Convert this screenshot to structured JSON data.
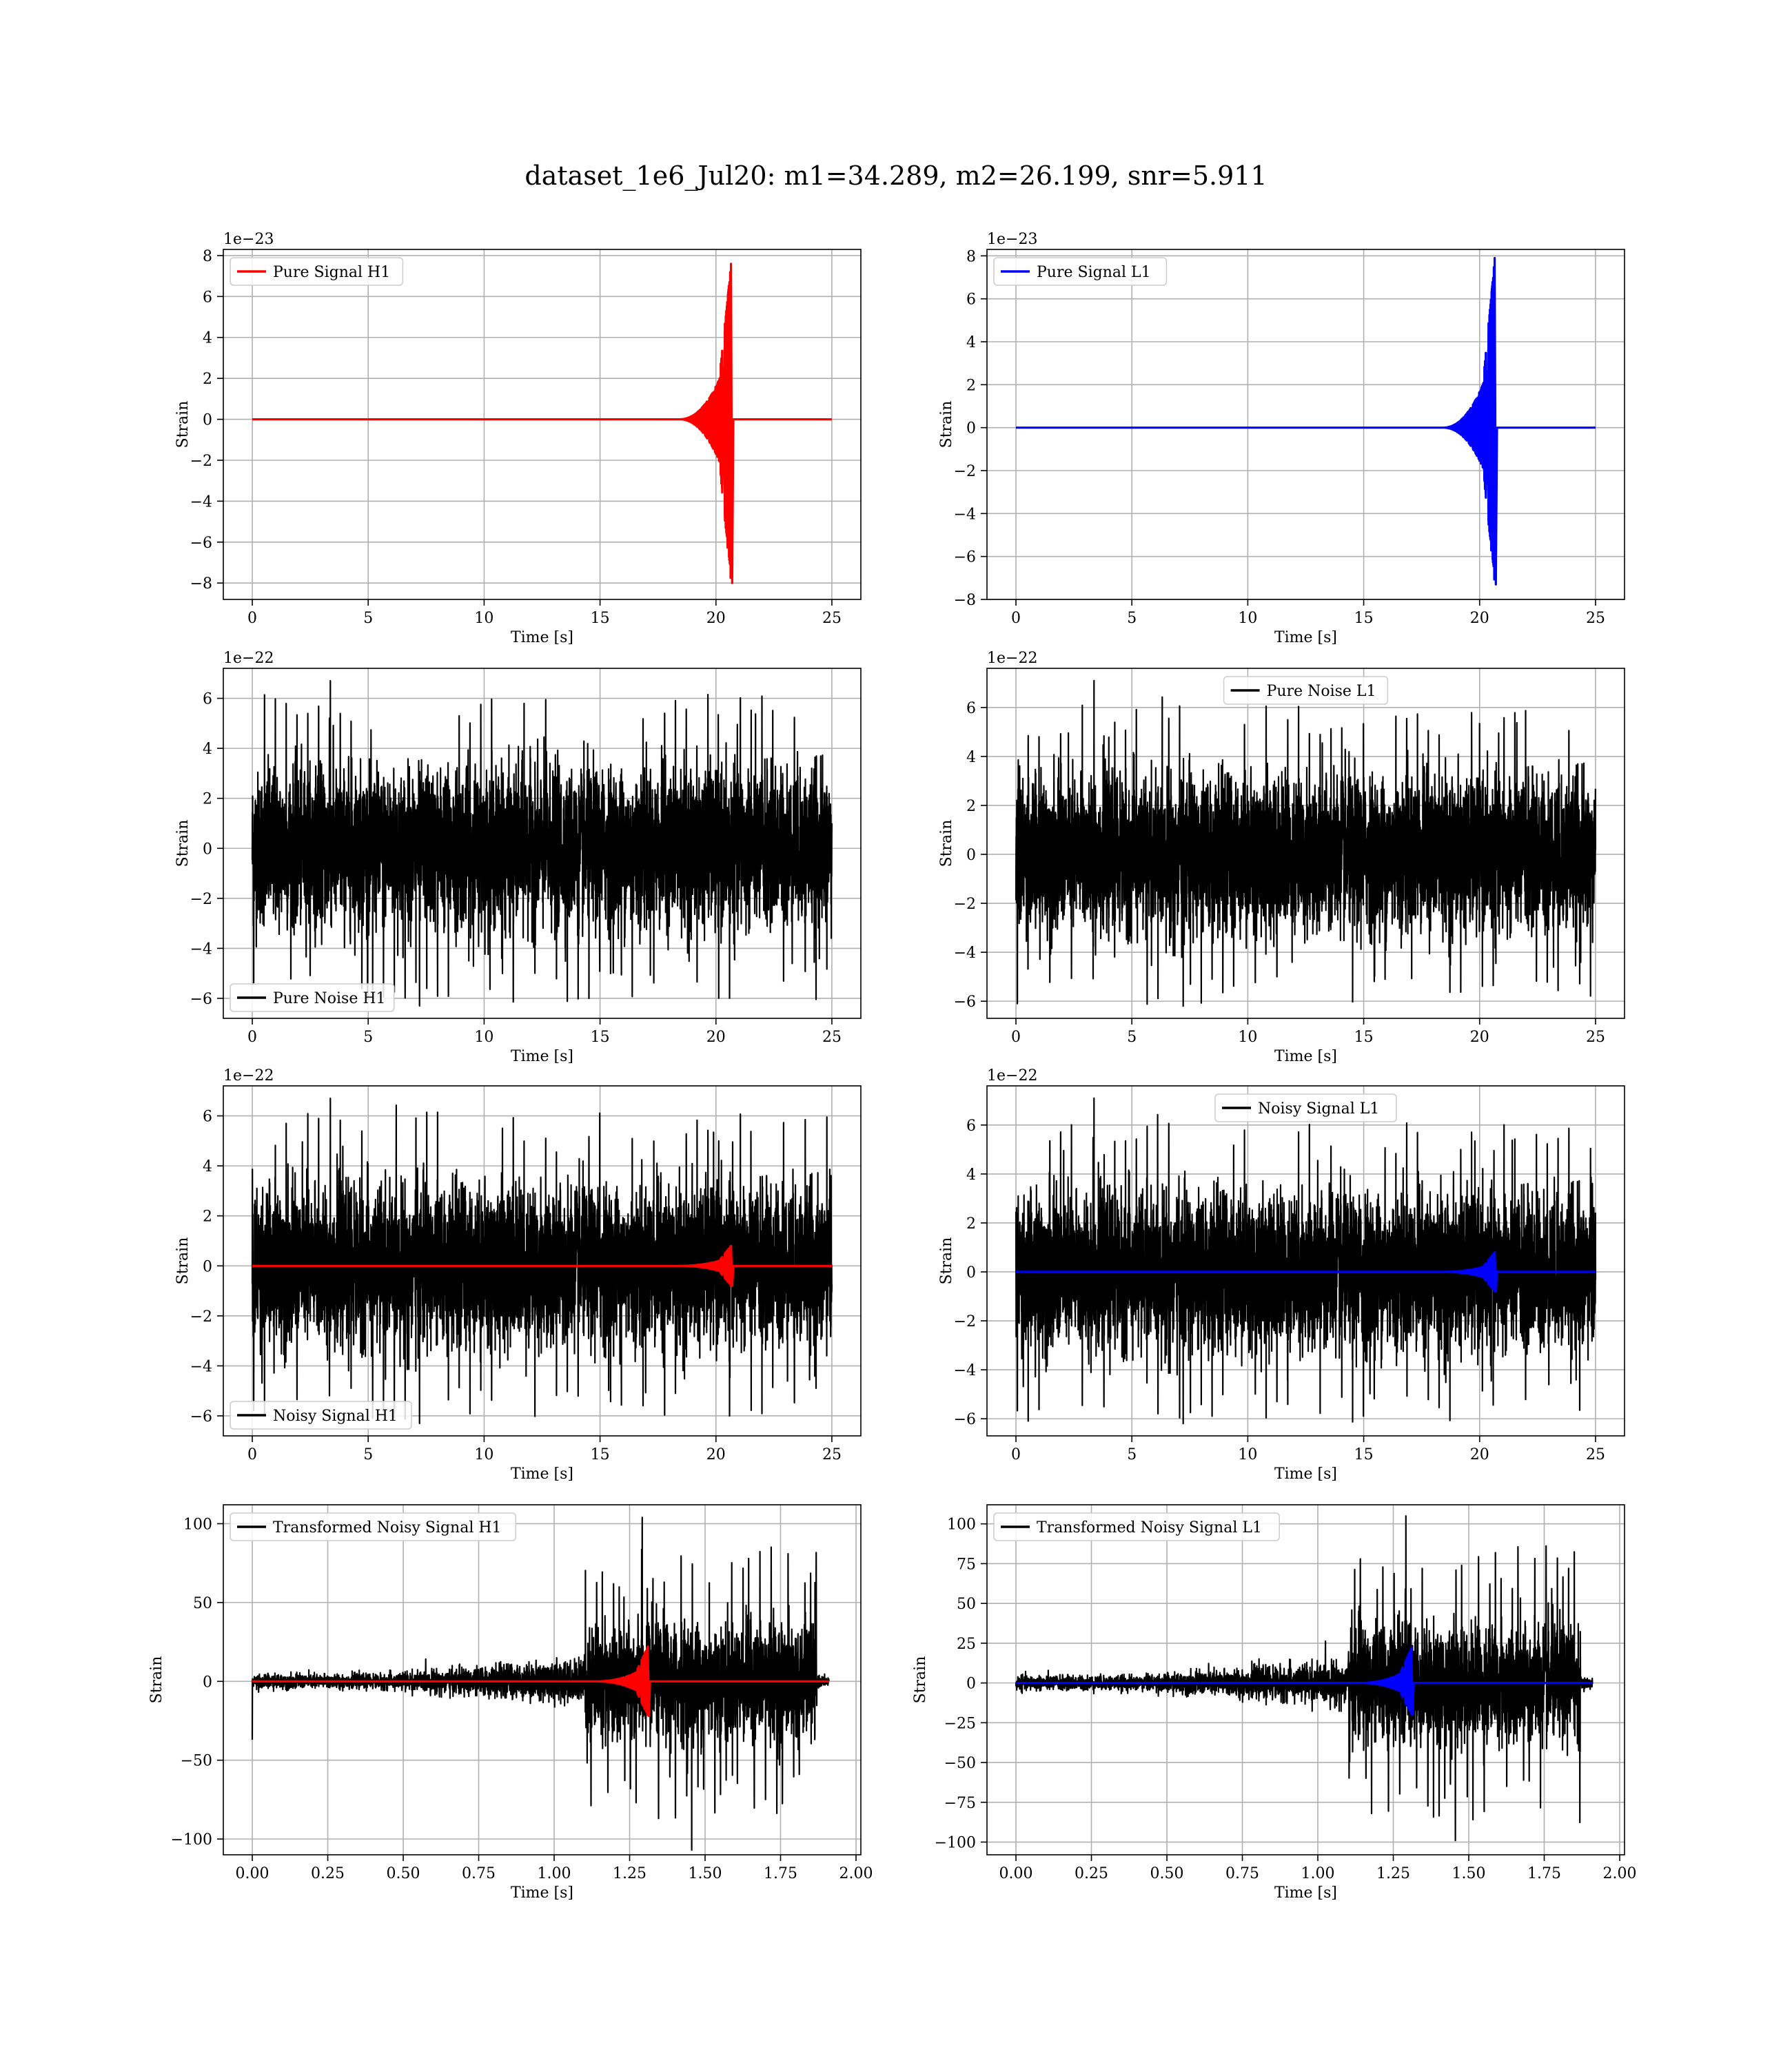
{
  "figure": {
    "title": "dataset_1e6_Jul20: m1=34.289, m2=26.199, snr=5.911"
  },
  "colors": {
    "h1_signal": "#ff0000",
    "l1_signal": "#0000ff",
    "noise": "#000000",
    "grid": "#b0b0b0"
  },
  "chart_data": [
    {
      "type": "line",
      "name": "pure-signal-h1",
      "legend": "Pure Signal H1",
      "legend_loc": "upper-left",
      "xlabel": "Time [s]",
      "ylabel": "Strain",
      "offset_text": "1e−23",
      "xlim": [
        -1.25,
        26.25
      ],
      "ylim": [
        -8.8,
        8.3
      ],
      "xticks": [
        0,
        5,
        10,
        15,
        20,
        25
      ],
      "xtick_labels": [
        "0",
        "5",
        "10",
        "15",
        "20",
        "25"
      ],
      "yticks": [
        -8,
        -6,
        -4,
        -2,
        0,
        2,
        4,
        6,
        8
      ],
      "ytick_labels": [
        "−8",
        "−6",
        "−4",
        "−2",
        "0",
        "2",
        "4",
        "6",
        "8"
      ],
      "grid": true,
      "series": [
        {
          "role": "signal",
          "color": "#ff0000",
          "x_range": [
            0,
            25
          ],
          "chirp_end": 20.65,
          "peak_pos": 7.6,
          "peak_neg": -8.0
        }
      ]
    },
    {
      "type": "line",
      "name": "pure-signal-l1",
      "legend": "Pure Signal L1",
      "legend_loc": "upper-left",
      "xlabel": "Time [s]",
      "ylabel": "Strain",
      "offset_text": "1e−23",
      "xlim": [
        -1.25,
        26.25
      ],
      "ylim": [
        -8.0,
        8.3
      ],
      "xticks": [
        0,
        5,
        10,
        15,
        20,
        25
      ],
      "xtick_labels": [
        "0",
        "5",
        "10",
        "15",
        "20",
        "25"
      ],
      "yticks": [
        -8,
        -6,
        -4,
        -2,
        0,
        2,
        4,
        6,
        8
      ],
      "ytick_labels": [
        "−8",
        "−6",
        "−4",
        "−2",
        "0",
        "2",
        "4",
        "6",
        "8"
      ],
      "grid": true,
      "series": [
        {
          "role": "signal",
          "color": "#0000ff",
          "x_range": [
            0,
            25
          ],
          "chirp_end": 20.65,
          "peak_pos": 7.9,
          "peak_neg": -7.3
        }
      ]
    },
    {
      "type": "line",
      "name": "pure-noise-h1",
      "legend": "Pure Noise H1",
      "legend_loc": "lower-left",
      "xlabel": "Time [s]",
      "ylabel": "Strain",
      "offset_text": "1e−22",
      "xlim": [
        -1.25,
        26.25
      ],
      "ylim": [
        -6.8,
        7.2
      ],
      "xticks": [
        0,
        5,
        10,
        15,
        20,
        25
      ],
      "xtick_labels": [
        "0",
        "5",
        "10",
        "15",
        "20",
        "25"
      ],
      "yticks": [
        -6,
        -4,
        -2,
        0,
        2,
        4,
        6
      ],
      "ytick_labels": [
        "−6",
        "−4",
        "−2",
        "0",
        "2",
        "4",
        "6"
      ],
      "grid": true,
      "series": [
        {
          "role": "noise",
          "color": "#000000",
          "x_range": [
            0,
            25
          ],
          "max": 6.7,
          "min": -6.3,
          "sigma": 1.5
        }
      ]
    },
    {
      "type": "line",
      "name": "pure-noise-l1",
      "legend": "Pure Noise L1",
      "legend_loc": "upper-center",
      "xlabel": "Time [s]",
      "ylabel": "Strain",
      "offset_text": "1e−22",
      "xlim": [
        -1.25,
        26.25
      ],
      "ylim": [
        -6.7,
        7.6
      ],
      "xticks": [
        0,
        5,
        10,
        15,
        20,
        25
      ],
      "xtick_labels": [
        "0",
        "5",
        "10",
        "15",
        "20",
        "25"
      ],
      "yticks": [
        -6,
        -4,
        -2,
        0,
        2,
        4,
        6
      ],
      "ytick_labels": [
        "−6",
        "−4",
        "−2",
        "0",
        "2",
        "4",
        "6"
      ],
      "grid": true,
      "series": [
        {
          "role": "noise",
          "color": "#000000",
          "x_range": [
            0,
            25
          ],
          "max": 7.1,
          "min": -6.2,
          "sigma": 1.5
        }
      ]
    },
    {
      "type": "line",
      "name": "noisy-signal-h1",
      "legend": "Noisy Signal H1",
      "legend_loc": "lower-left",
      "xlabel": "Time [s]",
      "ylabel": "Strain",
      "offset_text": "1e−22",
      "xlim": [
        -1.25,
        26.25
      ],
      "ylim": [
        -6.8,
        7.2
      ],
      "xticks": [
        0,
        5,
        10,
        15,
        20,
        25
      ],
      "xtick_labels": [
        "0",
        "5",
        "10",
        "15",
        "20",
        "25"
      ],
      "yticks": [
        -6,
        -4,
        -2,
        0,
        2,
        4,
        6
      ],
      "ytick_labels": [
        "−6",
        "−4",
        "−2",
        "0",
        "2",
        "4",
        "6"
      ],
      "grid": true,
      "series": [
        {
          "role": "noise",
          "color": "#000000",
          "x_range": [
            0,
            25
          ],
          "max": 6.7,
          "min": -6.3,
          "sigma": 1.5
        },
        {
          "role": "signal",
          "color": "#ff0000",
          "x_range": [
            0,
            25
          ],
          "chirp_end": 20.65,
          "peak_pos": 0.8,
          "peak_neg": -0.8
        }
      ]
    },
    {
      "type": "line",
      "name": "noisy-signal-l1",
      "legend": "Noisy Signal L1",
      "legend_loc": "upper-center",
      "xlabel": "Time [s]",
      "ylabel": "Strain",
      "offset_text": "1e−22",
      "xlim": [
        -1.25,
        26.25
      ],
      "ylim": [
        -6.7,
        7.6
      ],
      "xticks": [
        0,
        5,
        10,
        15,
        20,
        25
      ],
      "xtick_labels": [
        "0",
        "5",
        "10",
        "15",
        "20",
        "25"
      ],
      "yticks": [
        -6,
        -4,
        -2,
        0,
        2,
        4,
        6
      ],
      "ytick_labels": [
        "−6",
        "−4",
        "−2",
        "0",
        "2",
        "4",
        "6"
      ],
      "grid": true,
      "series": [
        {
          "role": "noise",
          "color": "#000000",
          "x_range": [
            0,
            25
          ],
          "max": 7.1,
          "min": -6.2,
          "sigma": 1.5
        },
        {
          "role": "signal",
          "color": "#0000ff",
          "x_range": [
            0,
            25
          ],
          "chirp_end": 20.65,
          "peak_pos": 0.8,
          "peak_neg": -0.8
        }
      ]
    },
    {
      "type": "line",
      "name": "transformed-noisy-signal-h1",
      "legend": "Transformed Noisy Signal H1",
      "legend_loc": "upper-left",
      "xlabel": "Time [s]",
      "ylabel": "Strain",
      "offset_text": "",
      "xlim": [
        -0.096,
        2.016
      ],
      "ylim": [
        -110,
        112
      ],
      "xticks": [
        0,
        0.25,
        0.5,
        0.75,
        1.0,
        1.25,
        1.5,
        1.75,
        2.0
      ],
      "xtick_labels": [
        "0.00",
        "0.25",
        "0.50",
        "0.75",
        "1.00",
        "1.25",
        "1.50",
        "1.75",
        "2.00"
      ],
      "yticks": [
        -100,
        -50,
        0,
        50,
        100
      ],
      "ytick_labels": [
        "−100",
        "−50",
        "0",
        "50",
        "100"
      ],
      "grid": true,
      "series": [
        {
          "role": "transformed_noise",
          "color": "#000000",
          "x_range": [
            0,
            1.91
          ],
          "burst_start": 1.1,
          "burst_end": 1.87,
          "max": 104,
          "min": -107,
          "first_value": -37
        },
        {
          "role": "signal",
          "color": "#ff0000",
          "x_range": [
            0,
            1.91
          ],
          "chirp_end": 1.31,
          "peak_pos": 22,
          "peak_neg": -22
        }
      ]
    },
    {
      "type": "line",
      "name": "transformed-noisy-signal-l1",
      "legend": "Transformed Noisy Signal L1",
      "legend_loc": "upper-left",
      "xlabel": "Time [s]",
      "ylabel": "Strain",
      "offset_text": "",
      "xlim": [
        -0.096,
        2.016
      ],
      "ylim": [
        -108,
        112
      ],
      "xticks": [
        0,
        0.25,
        0.5,
        0.75,
        1.0,
        1.25,
        1.5,
        1.75,
        2.0
      ],
      "xtick_labels": [
        "0.00",
        "0.25",
        "0.50",
        "0.75",
        "1.00",
        "1.25",
        "1.50",
        "1.75",
        "2.00"
      ],
      "yticks": [
        -100,
        -75,
        -50,
        -25,
        0,
        25,
        50,
        75,
        100
      ],
      "ytick_labels": [
        "−100",
        "−75",
        "−50",
        "−25",
        "0",
        "25",
        "50",
        "75",
        "100"
      ],
      "grid": true,
      "series": [
        {
          "role": "transformed_noise",
          "color": "#000000",
          "x_range": [
            0,
            1.91
          ],
          "burst_start": 1.1,
          "burst_end": 1.87,
          "max": 105,
          "min": -99,
          "first_value": -2
        },
        {
          "role": "signal",
          "color": "#0000ff",
          "x_range": [
            0,
            1.91
          ],
          "chirp_end": 1.31,
          "peak_pos": 22,
          "peak_neg": -20
        }
      ]
    }
  ]
}
